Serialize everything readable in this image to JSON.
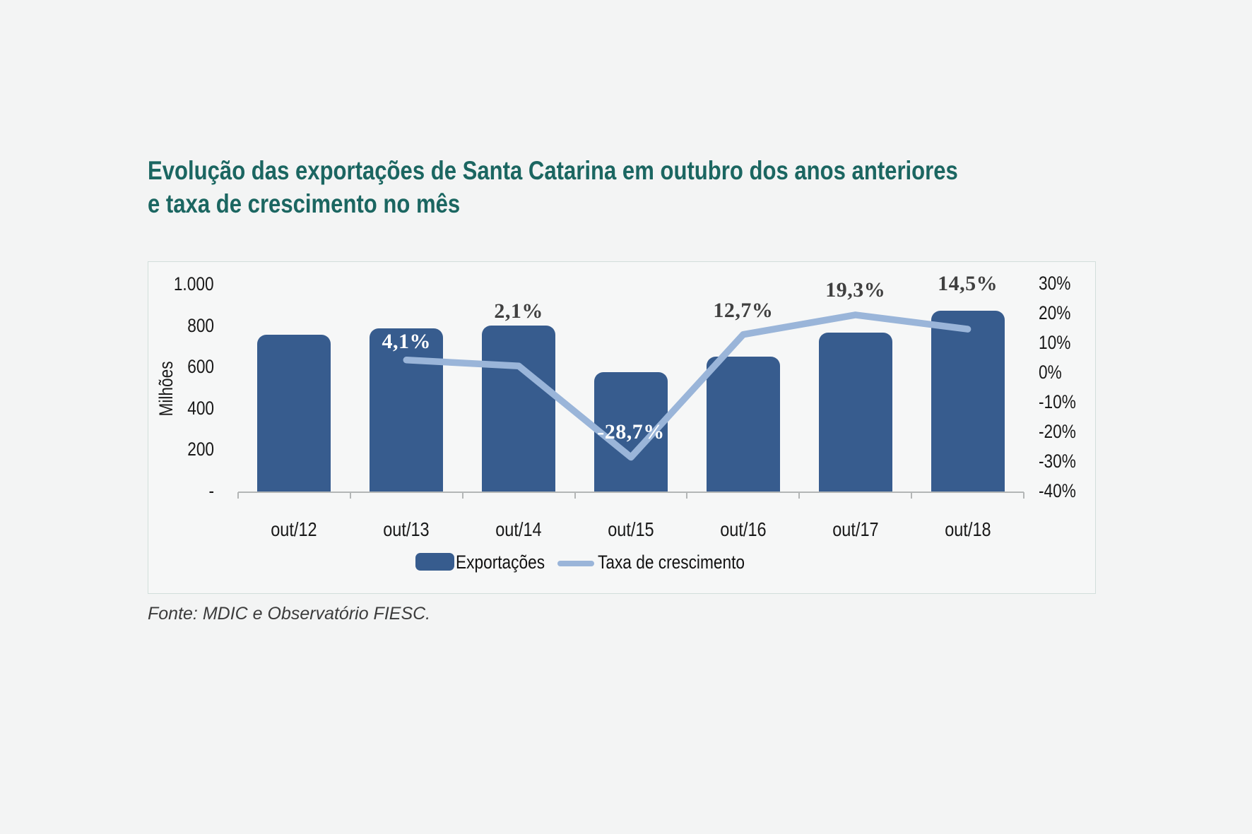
{
  "title": {
    "line1": "Evolução das exportações de Santa Catarina em outubro dos anos anteriores",
    "line2": "e taxa de crescimento no mês",
    "color": "#1b6661"
  },
  "footer": {
    "source_text": "Fonte: MDIC e Observatório FIESC."
  },
  "colors": {
    "bar": "#375c8e",
    "line": "#9ab5d9",
    "label_dark": "#404040",
    "label_light": "#ffffff",
    "axis": "#b3b6b6",
    "title": "#1b6661"
  },
  "chart_data": {
    "type": "bar",
    "subtype": "bar-line-combo",
    "categories": [
      "out/12",
      "out/13",
      "out/14",
      "out/15",
      "out/16",
      "out/17",
      "out/18"
    ],
    "series": [
      {
        "name": "Exportações",
        "type": "bar",
        "axis": "left",
        "values": [
          755,
          785,
          800,
          575,
          650,
          765,
          870
        ]
      },
      {
        "name": "Taxa de crescimento",
        "type": "line",
        "axis": "right",
        "values": [
          null,
          4.1,
          2.1,
          -28.7,
          12.7,
          19.3,
          14.5
        ],
        "point_labels": [
          null,
          "4,1%",
          "2,1%",
          "-28,7%",
          "12,7%",
          "19,3%",
          "14,5%"
        ]
      }
    ],
    "left_axis": {
      "title": "Milhões",
      "range": [
        0,
        1000
      ],
      "ticks": [
        {
          "label": "1.000",
          "value": 1000
        },
        {
          "label": "800",
          "value": 800
        },
        {
          "label": "600",
          "value": 600
        },
        {
          "label": "400",
          "value": 400
        },
        {
          "label": "200",
          "value": 200
        },
        {
          "label": "-",
          "value": 0
        }
      ]
    },
    "right_axis": {
      "range": [
        -40,
        30
      ],
      "ticks": [
        {
          "label": "30%",
          "value": 30
        },
        {
          "label": "20%",
          "value": 20
        },
        {
          "label": "10%",
          "value": 10
        },
        {
          "label": "0%",
          "value": 0
        },
        {
          "label": "-10%",
          "value": -10
        },
        {
          "label": "-20%",
          "value": -20
        },
        {
          "label": "-30%",
          "value": -30
        },
        {
          "label": "-40%",
          "value": -40
        }
      ]
    },
    "grid": false,
    "legend_position": "bottom",
    "legend": [
      {
        "label": "Exportações",
        "marker": "bar-swatch"
      },
      {
        "label": "Taxa de crescimento",
        "marker": "line-swatch"
      }
    ]
  }
}
